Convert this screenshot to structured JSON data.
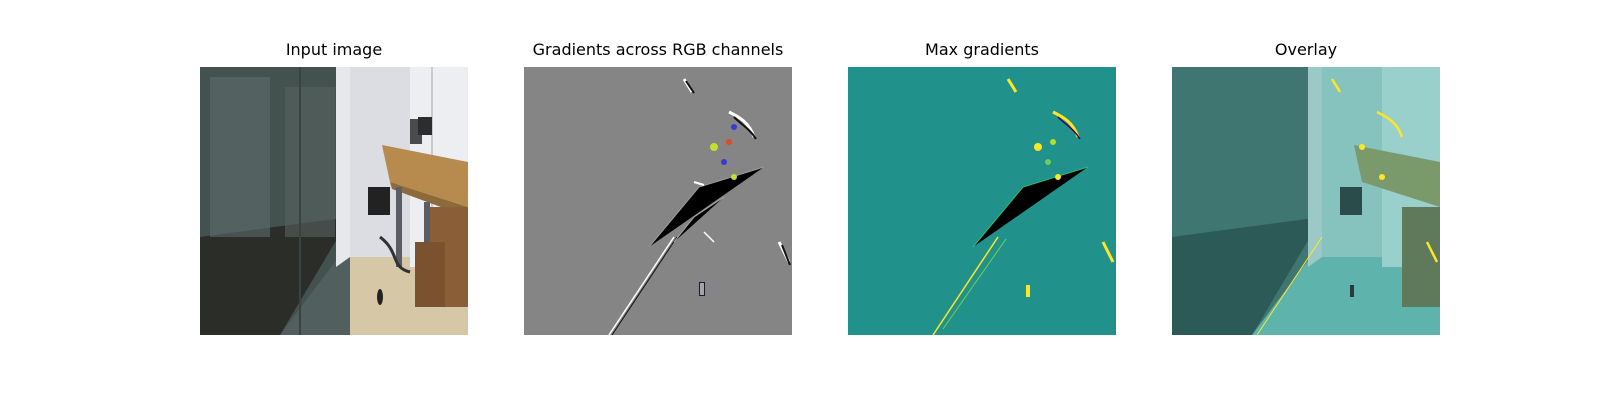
{
  "panels": [
    {
      "title": "Input image"
    },
    {
      "title": "Gradients across RGB channels"
    },
    {
      "title": "Max gradients"
    },
    {
      "title": "Overlay"
    }
  ],
  "colors": {
    "gradient_background": "#858585",
    "max_gradient_background": "#21918c",
    "highlight_yellow": "#fde725",
    "overlay_tint": "#5fb3ad"
  }
}
